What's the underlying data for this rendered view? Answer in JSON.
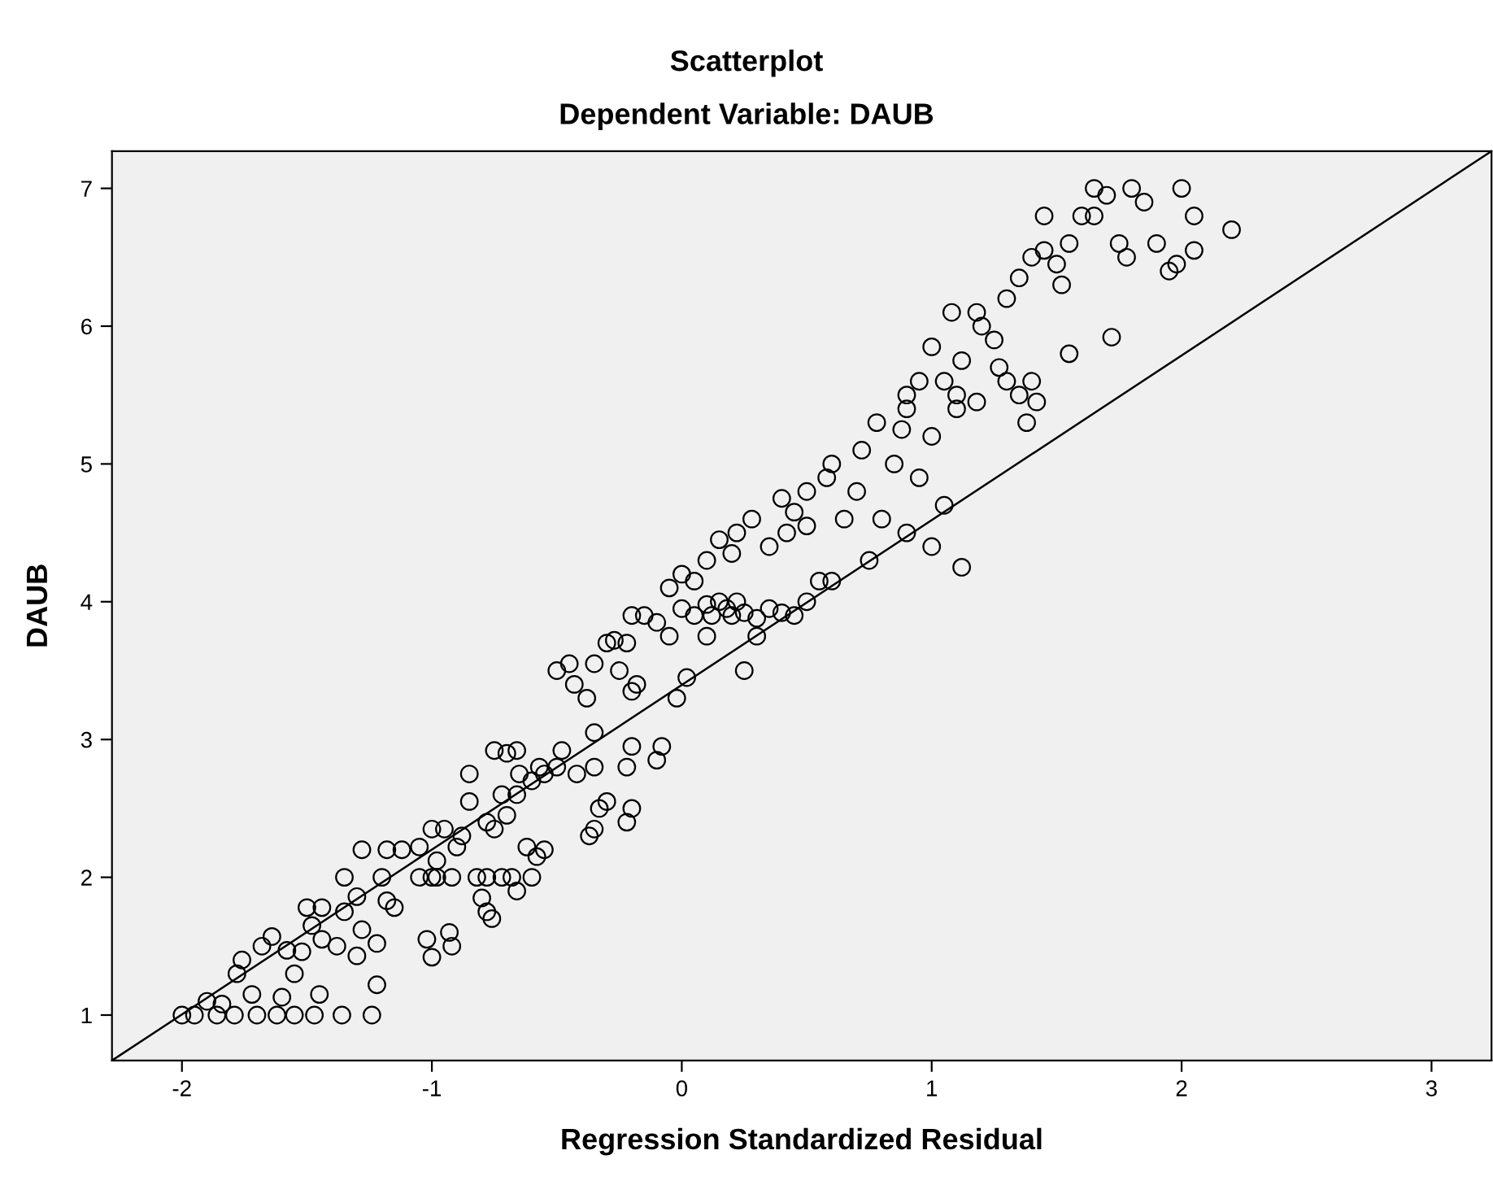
{
  "chart_data": {
    "type": "scatter",
    "title": "Scatterplot",
    "subtitle": "Dependent Variable: DAUB",
    "xlabel": "Regression Standardized Residual",
    "ylabel": "DAUB",
    "xlim": [
      -2.28,
      3.24
    ],
    "ylim": [
      0.67,
      7.27
    ],
    "xticks": [
      -2,
      -1,
      0,
      1,
      2,
      3
    ],
    "yticks": [
      1,
      2,
      3,
      4,
      5,
      6,
      7
    ],
    "grid": false,
    "legend": false,
    "series": [
      {
        "marker": "circle",
        "color": "#000000",
        "x": [
          -2.0,
          -1.95,
          -1.86,
          -1.79,
          -1.7,
          -1.62,
          -1.55,
          -1.47,
          -1.36,
          -1.24,
          -1.9,
          -1.84,
          -1.78,
          -1.72,
          -1.6,
          -1.55,
          -1.45,
          -1.22,
          -1.76,
          -1.68,
          -1.64,
          -1.58,
          -1.52,
          -1.48,
          -1.44,
          -1.38,
          -1.3,
          -1.28,
          -1.22,
          -1.02,
          -1.0,
          -0.93,
          -0.92,
          -1.5,
          -1.44,
          -1.35,
          -1.3,
          -1.18,
          -1.15,
          -0.8,
          -0.78,
          -0.76,
          -1.35,
          -1.2,
          -1.05,
          -1.0,
          -0.98,
          -0.92,
          -0.82,
          -0.78,
          -0.72,
          -0.68,
          -0.66,
          -0.6,
          -1.28,
          -1.18,
          -1.12,
          -1.05,
          -0.98,
          -0.9,
          -0.62,
          -0.58,
          -0.35,
          -0.37,
          -1.0,
          -0.95,
          -0.88,
          -0.78,
          -0.75,
          -0.7,
          -0.66,
          -0.55,
          -0.22,
          -0.2,
          -0.85,
          -0.72,
          -0.6,
          -0.55,
          -0.5,
          -0.42,
          -0.33,
          -0.3,
          -0.65,
          -0.85,
          -0.75,
          -0.7,
          -0.66,
          -0.57,
          -0.48,
          -0.35,
          -0.22,
          -0.2,
          -0.1,
          -0.08,
          -0.35,
          -0.5,
          -0.45,
          -0.43,
          -0.38,
          -0.35,
          -0.25,
          -0.2,
          -0.18,
          -0.02,
          0.02,
          0.25,
          -0.3,
          -0.27,
          -0.22,
          -0.2,
          -0.15,
          -0.1,
          -0.05,
          0.0,
          0.05,
          0.1,
          0.12,
          0.15,
          0.18,
          0.2,
          0.22,
          0.25,
          0.3,
          0.35,
          0.4,
          0.1,
          0.3,
          0.45,
          0.5,
          -0.05,
          0.0,
          0.05,
          0.1,
          0.15,
          0.2,
          0.22,
          0.28,
          0.35,
          0.42,
          0.5,
          0.55,
          0.6,
          0.45,
          0.5,
          0.4,
          0.58,
          0.6,
          0.65,
          0.7,
          0.72,
          0.78,
          0.8,
          0.85,
          0.9,
          0.95,
          1.0,
          0.88,
          1.05,
          1.1,
          0.75,
          0.9,
          1.0,
          1.12,
          0.9,
          0.95,
          1.0,
          1.05,
          1.1,
          1.12,
          1.18,
          1.2,
          1.25,
          1.3,
          1.35,
          1.38,
          1.42,
          1.4,
          1.18,
          1.08,
          1.27,
          1.55,
          1.3,
          1.35,
          1.4,
          1.45,
          1.5,
          1.52,
          1.55,
          1.6,
          1.65,
          1.7,
          1.75,
          1.78,
          1.8,
          1.85,
          1.9,
          1.95,
          2.0,
          2.05,
          2.2,
          2.05,
          1.72,
          1.65,
          1.45,
          1.98
        ],
        "values": [
          1,
          1,
          1,
          1,
          1,
          1,
          1,
          1,
          1,
          1,
          1.1,
          1.08,
          1.3,
          1.15,
          1.13,
          1.3,
          1.15,
          1.22,
          1.4,
          1.5,
          1.57,
          1.47,
          1.46,
          1.65,
          1.55,
          1.5,
          1.43,
          1.62,
          1.52,
          1.55,
          1.42,
          1.6,
          1.5,
          1.78,
          1.78,
          1.75,
          1.86,
          1.83,
          1.78,
          1.85,
          1.75,
          1.7,
          2.0,
          2.0,
          2.0,
          2.0,
          2.0,
          2.0,
          2.0,
          2.0,
          2.0,
          2.0,
          1.9,
          2.0,
          2.2,
          2.2,
          2.2,
          2.22,
          2.12,
          2.22,
          2.22,
          2.15,
          2.35,
          2.3,
          2.35,
          2.35,
          2.3,
          2.4,
          2.35,
          2.45,
          2.6,
          2.2,
          2.4,
          2.5,
          2.55,
          2.6,
          2.7,
          2.75,
          2.8,
          2.75,
          2.5,
          2.55,
          2.75,
          2.75,
          2.92,
          2.9,
          2.92,
          2.8,
          2.92,
          2.8,
          2.8,
          2.95,
          2.85,
          2.95,
          3.05,
          3.5,
          3.55,
          3.4,
          3.3,
          3.55,
          3.5,
          3.35,
          3.4,
          3.3,
          3.45,
          3.5,
          3.7,
          3.72,
          3.7,
          3.9,
          3.9,
          3.85,
          3.75,
          3.95,
          3.9,
          3.98,
          3.9,
          4.0,
          3.95,
          3.9,
          4.0,
          3.92,
          3.88,
          3.95,
          3.92,
          3.75,
          3.75,
          3.9,
          4.0,
          4.1,
          4.2,
          4.15,
          4.3,
          4.45,
          4.35,
          4.5,
          4.6,
          4.4,
          4.5,
          4.55,
          4.15,
          4.15,
          4.65,
          4.8,
          4.75,
          4.9,
          5.0,
          4.6,
          4.8,
          5.1,
          5.3,
          4.6,
          5.0,
          5.4,
          4.9,
          5.2,
          5.25,
          4.7,
          5.4,
          4.3,
          4.5,
          4.4,
          4.25,
          5.5,
          5.6,
          5.85,
          5.6,
          5.5,
          5.75,
          5.45,
          6.0,
          5.9,
          5.6,
          5.5,
          5.3,
          5.45,
          5.6,
          6.1,
          6.1,
          5.7,
          5.8,
          6.2,
          6.35,
          6.5,
          6.55,
          6.45,
          6.3,
          6.6,
          6.8,
          7.0,
          6.95,
          6.6,
          6.5,
          7.0,
          6.9,
          6.6,
          6.4,
          7.0,
          6.8,
          6.7,
          6.55,
          5.92,
          6.8,
          6.8,
          6.45
        ]
      },
      {
        "type": "line",
        "marker": "none",
        "line_style": "solid",
        "color": "#000000",
        "x": [
          -2.28,
          3.24
        ],
        "values": [
          0.67,
          7.27
        ]
      }
    ]
  }
}
